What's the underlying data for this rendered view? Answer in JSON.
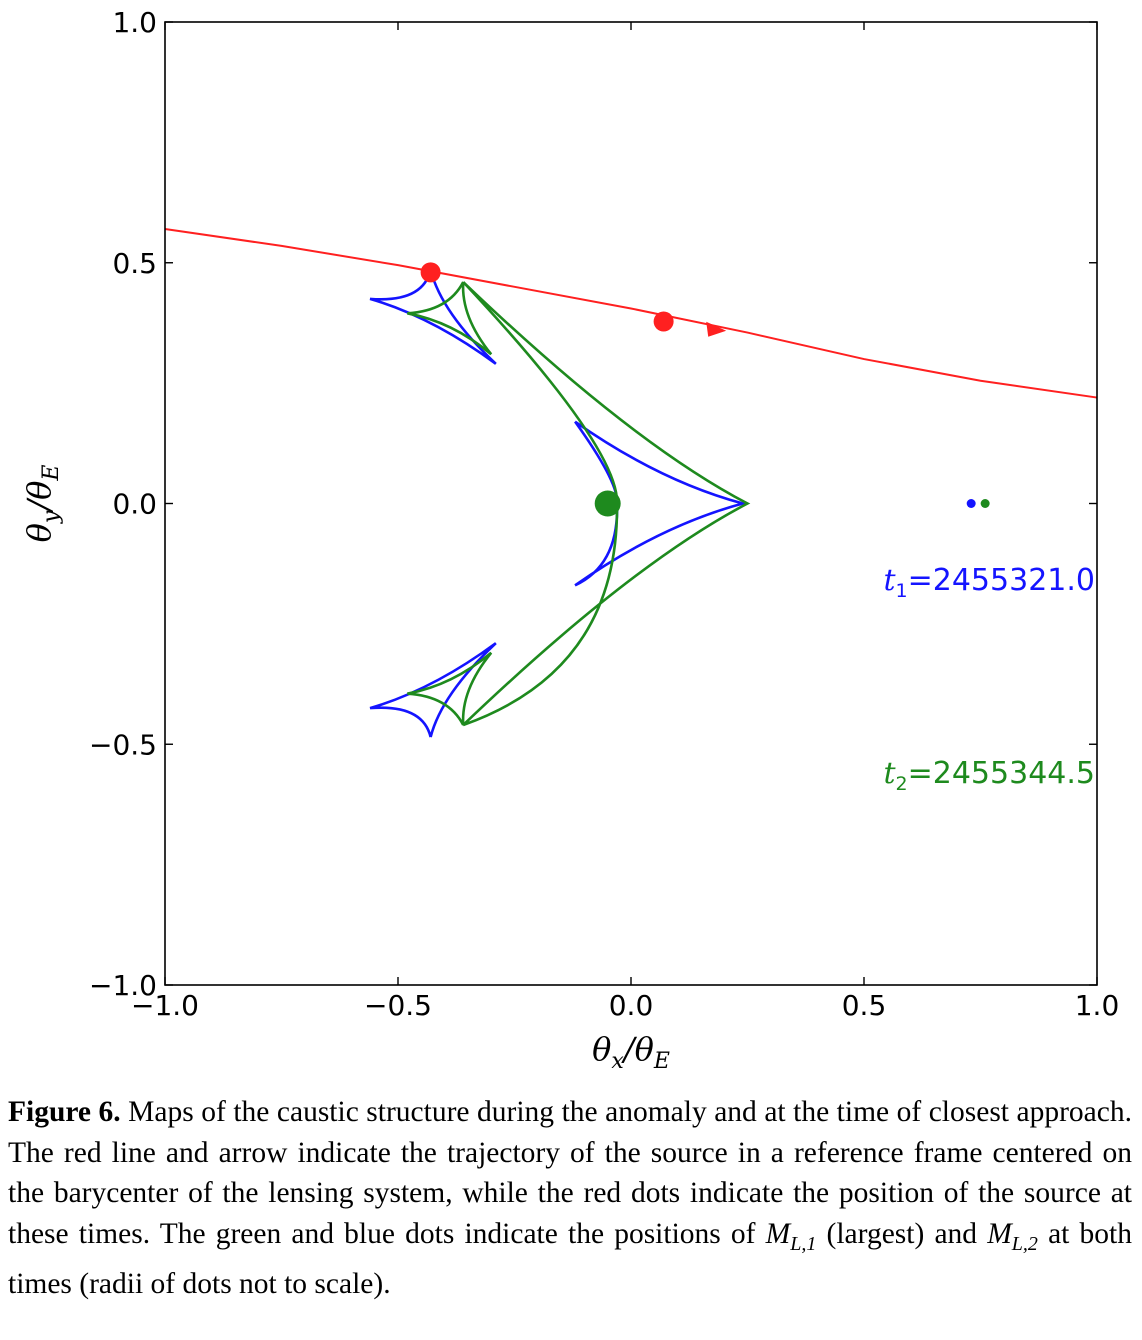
{
  "chart_data": {
    "type": "scatter",
    "xlabel": "θx/θE",
    "ylabel": "θy/θE",
    "xlim": [
      -1.0,
      1.0
    ],
    "ylim": [
      -1.0,
      1.0
    ],
    "xticks": [
      -1.0,
      -0.5,
      0.0,
      0.5,
      1.0
    ],
    "yticks": [
      -1.0,
      -0.5,
      0.0,
      0.5,
      1.0
    ],
    "xtick_labels": [
      "−1.0",
      "−0.5",
      "0.0",
      "0.5",
      "1.0"
    ],
    "ytick_labels": [
      "−1.0",
      "−0.5",
      "0.0",
      "0.5",
      "1.0"
    ],
    "grid": false,
    "colors": {
      "trajectory": "#ff2020",
      "t1": "#1414ff",
      "t2": "#1e8a1e"
    },
    "trajectory": {
      "x": [
        -1.0,
        -0.75,
        -0.5,
        -0.25,
        0.0,
        0.25,
        0.5,
        0.75,
        1.0
      ],
      "y": [
        0.57,
        0.535,
        0.495,
        0.45,
        0.405,
        0.355,
        0.3,
        0.255,
        0.22
      ],
      "arrow": {
        "x": 0.17,
        "y": 0.365
      }
    },
    "source_positions": [
      {
        "label": "t1",
        "x": -0.43,
        "y": 0.48
      },
      {
        "label": "t2",
        "x": 0.07,
        "y": 0.378
      }
    ],
    "lens_positions": [
      {
        "color": "t1",
        "x": 0.73,
        "y": 0.0
      },
      {
        "color": "t2",
        "x": 0.76,
        "y": 0.0
      }
    ],
    "big_lens": {
      "color": "t2",
      "x": -0.05,
      "y": 0.0
    },
    "caustics": [
      {
        "name": "t1",
        "central": {
          "left_cusp": [
            -0.03,
            0.0
          ],
          "right_cusp": [
            0.24,
            0.0
          ],
          "top_cusp": [
            -0.12,
            0.17
          ],
          "bottom_cusp": [
            -0.12,
            -0.17
          ]
        },
        "planetary_top": {
          "cusps": [
            [
              -0.43,
              0.485
            ],
            [
              -0.56,
              0.425
            ],
            [
              -0.29,
              0.29
            ]
          ]
        },
        "planetary_bottom": {
          "cusps": [
            [
              -0.43,
              -0.485
            ],
            [
              -0.56,
              -0.425
            ],
            [
              -0.29,
              -0.29
            ]
          ]
        }
      },
      {
        "name": "t2",
        "central": {
          "left_cusp": [
            -0.03,
            0.0
          ],
          "right_cusp": [
            0.25,
            0.0
          ],
          "top_cusp": [
            -0.36,
            0.46
          ],
          "bottom_cusp": [
            -0.36,
            -0.46
          ]
        },
        "planetary_top": {
          "cusps": [
            [
              -0.36,
              0.46
            ],
            [
              -0.48,
              0.395
            ],
            [
              -0.3,
              0.31
            ]
          ]
        },
        "planetary_bottom": {
          "cusps": [
            [
              -0.36,
              -0.46
            ],
            [
              -0.48,
              -0.395
            ],
            [
              -0.3,
              -0.31
            ]
          ]
        }
      }
    ],
    "annotations": [
      {
        "var": "t",
        "sub": "1",
        "value": "=2455321.0",
        "color": "t1",
        "x": 1.0,
        "y": -0.18
      },
      {
        "var": "t",
        "sub": "2",
        "value": "=2455344.5",
        "color": "t2",
        "x": 1.0,
        "y": -0.58
      }
    ]
  },
  "caption": {
    "label": "Figure 6.",
    "text_1": " Maps of the caustic structure during the anomaly and at the time of closest approach. The red line and arrow indicate the trajectory of the source in a reference frame centered on the barycenter of the lensing system, while the red dots indicate the position of the source at these times. The green and blue dots indicate the positions of ",
    "m1": "M",
    "m1_sub": "L,1",
    "text_2": " (largest) and ",
    "m2": "M",
    "m2_sub": "L,2",
    "text_3": " at both times (radii of dots not to scale)."
  }
}
